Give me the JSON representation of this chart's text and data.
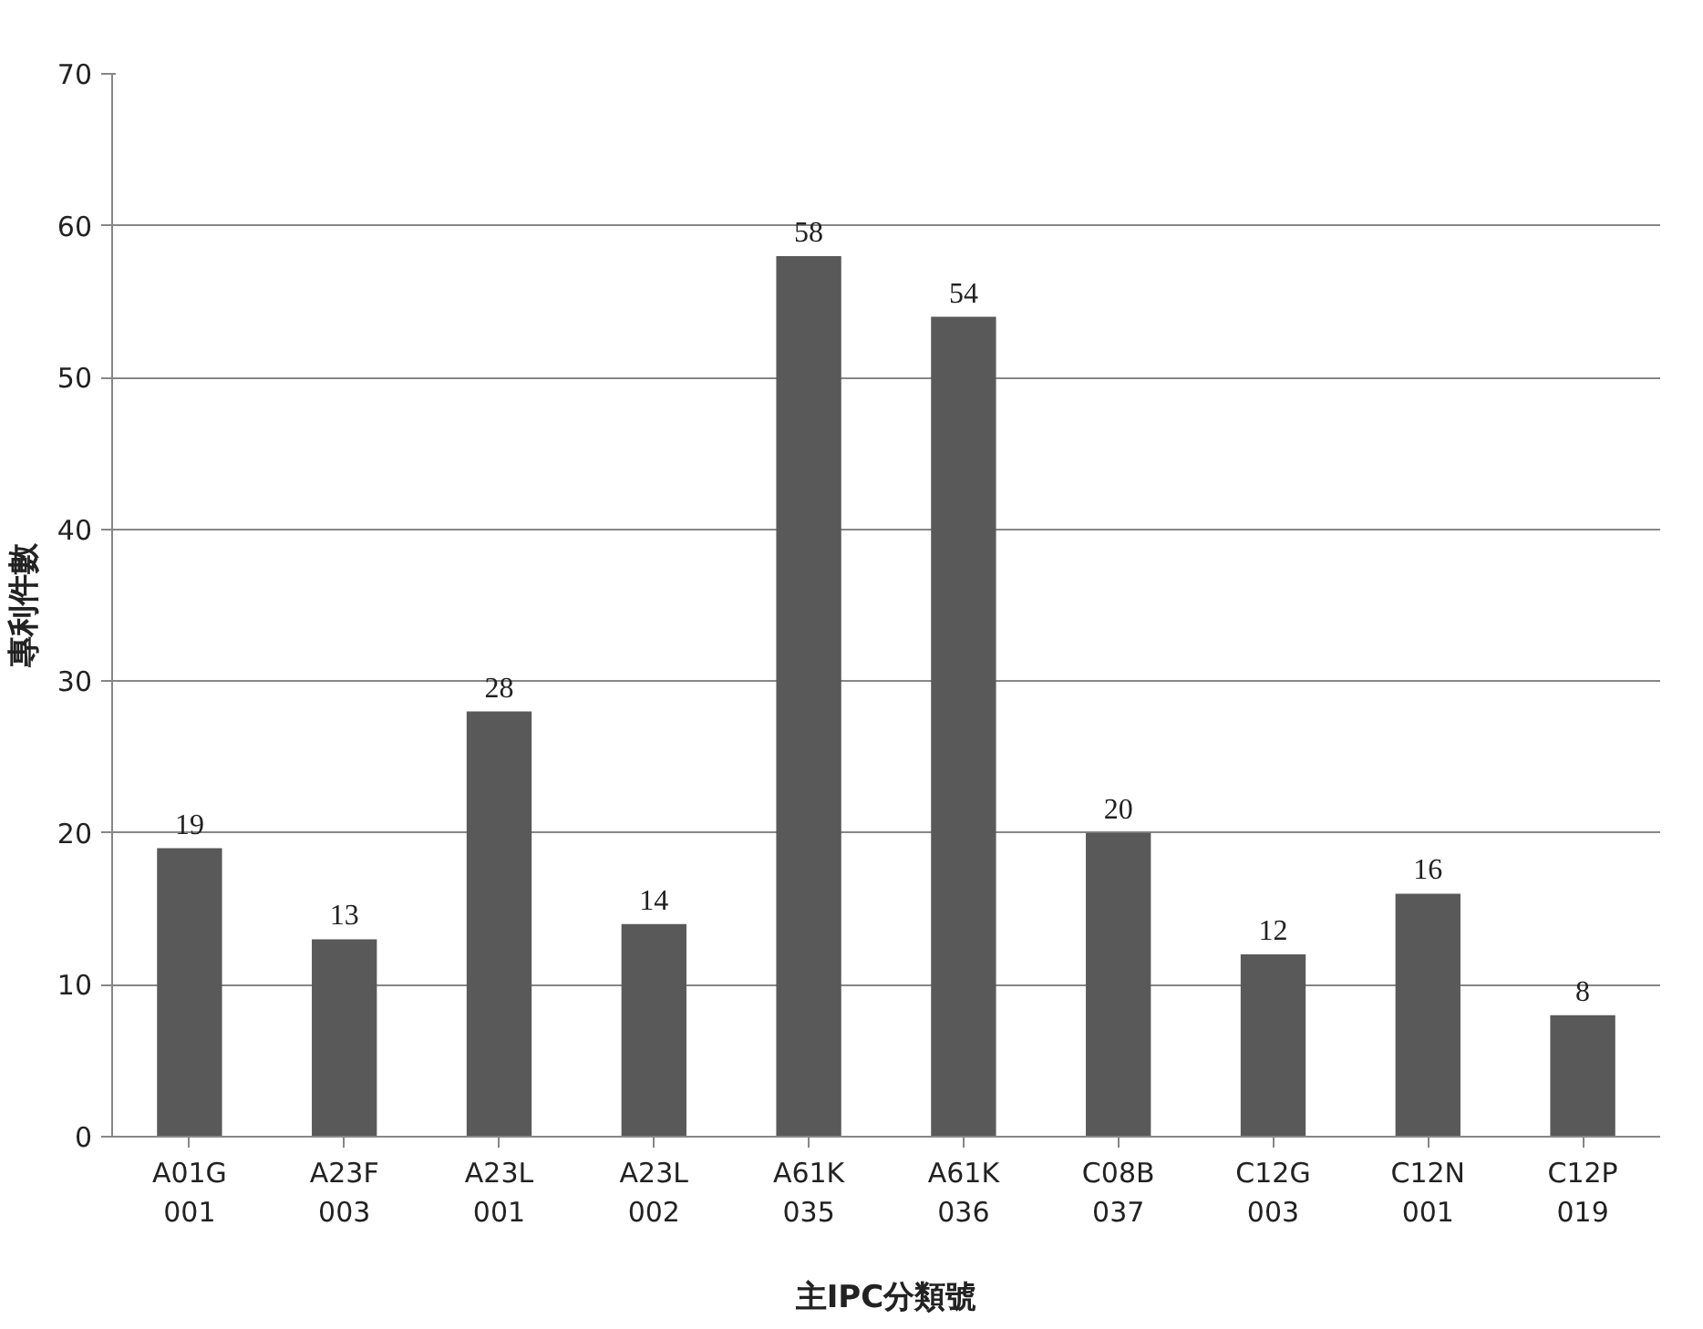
{
  "chart_data": {
    "type": "bar",
    "xlabel": "主IPC分類號",
    "ylabel": "專利件數",
    "categories": [
      "A01G\n001",
      "A23F\n003",
      "A23L\n001",
      "A23L\n002",
      "A61K\n035",
      "A61K\n036",
      "C08B\n037",
      "C12G\n003",
      "C12N\n001",
      "C12P\n019"
    ],
    "values": [
      19,
      13,
      28,
      14,
      58,
      54,
      20,
      12,
      16,
      8
    ],
    "color": "#595959",
    "ylim": [
      0,
      70
    ],
    "yticks": [
      0,
      10,
      20,
      30,
      40,
      50,
      60,
      70
    ],
    "grid": "y",
    "data_labels": true
  }
}
